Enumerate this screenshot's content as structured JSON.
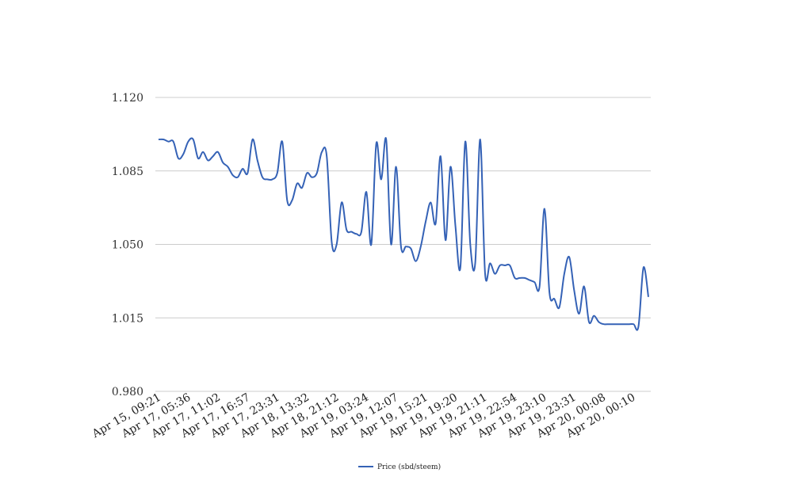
{
  "chart_data": {
    "type": "line",
    "title": "",
    "xlabel": "",
    "ylabel": "",
    "ylim": [
      0.98,
      1.12
    ],
    "yticks": [
      "1.120",
      "1.085",
      "1.050",
      "1.015",
      "0.980"
    ],
    "xticks": [
      "Apr 15, 09:21",
      "Apr 17, 05:36",
      "Apr 17, 11:02",
      "Apr 17, 16:57",
      "Apr 17, 23:31",
      "Apr 18, 13:32",
      "Apr 18, 21:12",
      "Apr 19, 03:24",
      "Apr 19, 12:07",
      "Apr 19, 15:21",
      "Apr 19, 19:20",
      "Apr 19, 21:11",
      "Apr 19, 22:54",
      "Apr 19, 23:10",
      "Apr 19, 23:31",
      "Apr 20, 00:08",
      "Apr 20, 00:10"
    ],
    "grid": true,
    "legend": {
      "position": "bottom"
    },
    "series": [
      {
        "name": "Price (sbd/steem)",
        "color": "#3562b6",
        "values": [
          1.1,
          1.1,
          1.099,
          1.099,
          1.091,
          1.093,
          1.099,
          1.1,
          1.091,
          1.094,
          1.09,
          1.092,
          1.094,
          1.089,
          1.087,
          1.083,
          1.082,
          1.086,
          1.084,
          1.1,
          1.09,
          1.082,
          1.081,
          1.081,
          1.084,
          1.099,
          1.071,
          1.071,
          1.079,
          1.077,
          1.084,
          1.082,
          1.084,
          1.094,
          1.092,
          1.051,
          1.05,
          1.07,
          1.057,
          1.056,
          1.055,
          1.056,
          1.075,
          1.05,
          1.098,
          1.081,
          1.1,
          1.05,
          1.087,
          1.049,
          1.049,
          1.048,
          1.042,
          1.049,
          1.061,
          1.07,
          1.06,
          1.092,
          1.052,
          1.087,
          1.059,
          1.039,
          1.099,
          1.05,
          1.041,
          1.1,
          1.036,
          1.041,
          1.036,
          1.04,
          1.04,
          1.04,
          1.034,
          1.034,
          1.034,
          1.033,
          1.032,
          1.03,
          1.067,
          1.027,
          1.024,
          1.02,
          1.036,
          1.044,
          1.028,
          1.017,
          1.03,
          1.013,
          1.016,
          1.013,
          1.012,
          1.012,
          1.012,
          1.012,
          1.012,
          1.012,
          1.012,
          1.011,
          1.039,
          1.025
        ]
      }
    ]
  }
}
